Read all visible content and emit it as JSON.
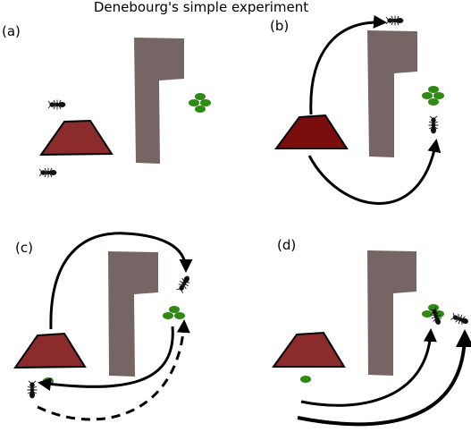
{
  "title": "Denebourg's simple experiment",
  "panels": [
    {
      "id": "a",
      "label": "(a)"
    },
    {
      "id": "b",
      "label": "(b)"
    },
    {
      "id": "c",
      "label": "(c)"
    },
    {
      "id": "d",
      "label": "(d)"
    }
  ],
  "colors": {
    "nest_light": "#8b2b2b",
    "nest_dark": "#7a0d0d",
    "obstacle": "#766565",
    "food": "#2f8a12",
    "ant": "#111111",
    "path": "#000000"
  }
}
